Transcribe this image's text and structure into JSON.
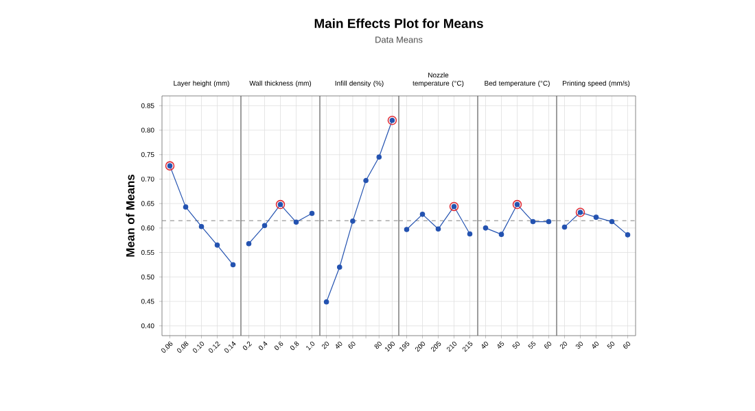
{
  "chart_data": [
    {
      "type": "line",
      "title": "Layer height (mm)",
      "ylabel": "Mean of Means",
      "annotations": [
        "Main Effects Plot for Means",
        "Data Means"
      ],
      "categories": [
        "0.06",
        "0.08",
        "0.10",
        "0.12",
        "0.14"
      ],
      "series": [
        {
          "color": "#2352b0",
          "marker": "circle",
          "values": [
            0.727,
            0.643,
            0.603,
            0.565,
            0.525
          ]
        },
        {
          "type": "scatter",
          "color": "#e0303a",
          "marker": "circle",
          "values": [
            0.727,
            null,
            null,
            null,
            null
          ]
        }
      ],
      "ylim": [
        0.38,
        0.87
      ],
      "yticks": [
        {
          "value": 0.4,
          "label": "0.40"
        },
        0.45,
        {
          "value": 0.5,
          "label": "0.50"
        },
        0.55,
        {
          "value": 0.6,
          "label": "0.60"
        },
        0.65,
        {
          "value": 0.7,
          "label": "0.70"
        },
        0.75,
        {
          "value": 0.8,
          "label": "0.80"
        },
        0.85
      ],
      "grid": true,
      "ref_lines": [
        {
          "axis": "y",
          "value": 0.615,
          "color": "#808080",
          "line_style": "dashed"
        }
      ]
    },
    {
      "type": "line",
      "title": "Wall thickness (mm)",
      "categories": [
        "0.2",
        "0.4",
        "0.6",
        "0.8",
        "1.0"
      ],
      "series": [
        {
          "color": "#2352b0",
          "marker": "circle",
          "values": [
            0.568,
            0.605,
            0.648,
            0.612,
            0.63
          ]
        },
        {
          "type": "scatter",
          "color": "#e0303a",
          "marker": "circle",
          "values": [
            null,
            null,
            0.648,
            null,
            null
          ]
        }
      ],
      "ylim": [
        0.38,
        0.87
      ],
      "yticks": [
        0.4,
        0.45,
        0.5,
        0.55,
        0.6,
        0.65,
        0.7,
        0.75,
        0.8,
        0.85
      ],
      "tick_labels": "x",
      "grid": true,
      "ref_lines": [
        {
          "axis": "y",
          "value": 0.615,
          "color": "#808080",
          "line_style": "dashed"
        }
      ]
    },
    {
      "type": "line",
      "title": "Infill density (%)",
      "categories": [
        "20",
        "40",
        "60",
        null,
        "80",
        "100"
      ],
      "series": [
        {
          "color": "#2352b0",
          "marker": "circle",
          "values": [
            0.449,
            0.52,
            0.614,
            0.697,
            0.745,
            0.82
          ]
        },
        {
          "type": "scatter",
          "color": "#e0303a",
          "marker": "circle",
          "values": [
            null,
            null,
            null,
            null,
            null,
            0.82
          ]
        }
      ],
      "ylim": [
        0.38,
        0.87
      ],
      "yticks": [
        0.4,
        0.45,
        0.5,
        0.55,
        0.6,
        0.65,
        0.7,
        0.75,
        0.8,
        0.85
      ],
      "tick_labels": "x",
      "grid": true,
      "ref_lines": [
        {
          "axis": "y",
          "value": 0.615,
          "color": "#808080",
          "line_style": "dashed"
        }
      ]
    },
    {
      "type": "line",
      "title": "Nozzle temperature (°C)",
      "categories": [
        "195",
        "200",
        "205",
        "210",
        "215"
      ],
      "series": [
        {
          "color": "#2352b0",
          "marker": "circle",
          "values": [
            0.597,
            0.628,
            0.598,
            0.644,
            0.588
          ]
        },
        {
          "type": "scatter",
          "color": "#e0303a",
          "marker": "circle",
          "values": [
            null,
            null,
            null,
            0.644,
            null
          ]
        }
      ],
      "ylim": [
        0.38,
        0.87
      ],
      "yticks": [
        0.4,
        0.45,
        0.5,
        0.55,
        0.6,
        0.65,
        0.7,
        0.75,
        0.8,
        0.85
      ],
      "tick_labels": "x",
      "grid": true,
      "ref_lines": [
        {
          "axis": "y",
          "value": 0.615,
          "color": "#808080",
          "line_style": "dashed"
        }
      ]
    },
    {
      "type": "line",
      "title": "Bed temperature (°C)",
      "categories": [
        "40",
        "45",
        "50",
        "55",
        "60"
      ],
      "series": [
        {
          "color": "#2352b0",
          "marker": "circle",
          "values": [
            0.6,
            0.587,
            0.648,
            0.613,
            0.613
          ]
        },
        {
          "type": "scatter",
          "color": "#e0303a",
          "marker": "circle",
          "values": [
            null,
            null,
            0.648,
            null,
            null
          ]
        }
      ],
      "ylim": [
        0.38,
        0.87
      ],
      "yticks": [
        0.4,
        0.45,
        0.5,
        0.55,
        0.6,
        0.65,
        0.7,
        0.75,
        0.8,
        0.85
      ],
      "tick_labels": "x",
      "grid": true,
      "ref_lines": [
        {
          "axis": "y",
          "value": 0.615,
          "color": "#808080",
          "line_style": "dashed"
        }
      ]
    },
    {
      "type": "line",
      "title": "Printing speed (mm/s)",
      "categories": [
        "20",
        "30",
        "40",
        "50",
        "60"
      ],
      "series": [
        {
          "color": "#2352b0",
          "marker": "circle",
          "values": [
            0.602,
            0.632,
            0.622,
            0.613,
            0.586
          ]
        },
        {
          "type": "scatter",
          "color": "#e0303a",
          "marker": "circle",
          "values": [
            null,
            0.632,
            null,
            null,
            null
          ]
        }
      ],
      "ylim": [
        0.38,
        0.87
      ],
      "yticks": [
        0.4,
        0.45,
        0.5,
        0.55,
        0.6,
        0.65,
        0.7,
        0.75,
        0.8,
        0.85
      ],
      "tick_labels": "x",
      "grid": true,
      "ref_lines": [
        {
          "axis": "y",
          "value": 0.615,
          "color": "#808080",
          "line_style": "dashed"
        }
      ]
    }
  ]
}
